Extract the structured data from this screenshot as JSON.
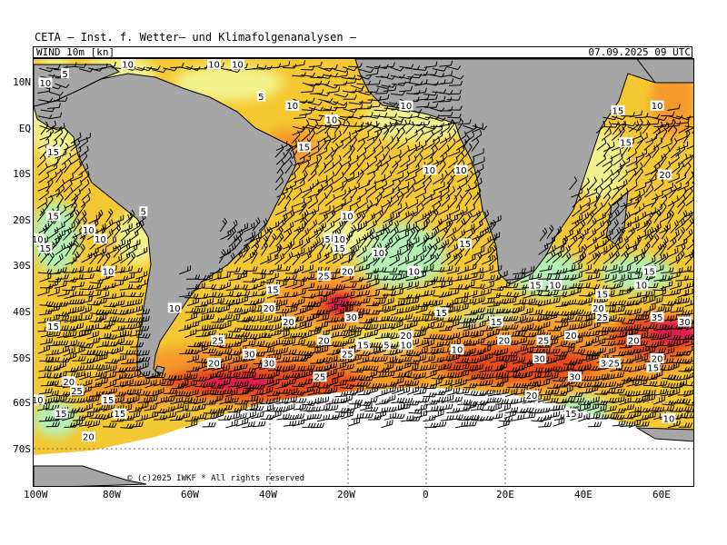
{
  "header": {
    "title": "CETA – Inst. f. Wetter– und Klimafolgenanalysen –",
    "variable": "WIND  10m  [kn]",
    "datetime": "07.09.2025  09  UTC"
  },
  "axes": {
    "lat_labels": [
      "10N",
      "EQ",
      "10S",
      "20S",
      "30S",
      "40S",
      "50S",
      "60S",
      "70S"
    ],
    "lon_labels": [
      "100W",
      "80W",
      "60W",
      "40W",
      "20W",
      "0",
      "20E",
      "40E",
      "60E"
    ]
  },
  "footer": {
    "copyright": "© (c)2025 IWKF  *  All rights reserved"
  },
  "map": {
    "projection": "lat-lon",
    "region": "South Atlantic",
    "colors": {
      "land": "#a6a6a6",
      "ice": "#ffffff",
      "wind_calm": "#b4f0b4",
      "wind_light": "#f2f28c",
      "wind_moderate": "#f6c42a",
      "wind_fresh": "#f59a2a",
      "wind_strong": "#e84a1e",
      "wind_gale": "#e01a50"
    },
    "speed_labels": [
      {
        "lon": -92,
        "lat": 12,
        "text": "5"
      },
      {
        "lon": -76,
        "lat": 14,
        "text": "10"
      },
      {
        "lon": -54,
        "lat": 14,
        "text": "10"
      },
      {
        "lon": -48,
        "lat": 14,
        "text": "10"
      },
      {
        "lon": -42,
        "lat": 7,
        "text": "5"
      },
      {
        "lon": -34,
        "lat": 5,
        "text": "10"
      },
      {
        "lon": -24,
        "lat": 2,
        "text": "10"
      },
      {
        "lon": -5,
        "lat": 5,
        "text": "10"
      },
      {
        "lon": 49,
        "lat": 4,
        "text": "15"
      },
      {
        "lon": 59,
        "lat": 5,
        "text": "10"
      },
      {
        "lon": -97,
        "lat": 10,
        "text": "10"
      },
      {
        "lon": -95,
        "lat": -5,
        "text": "15"
      },
      {
        "lon": -31,
        "lat": -4,
        "text": "15"
      },
      {
        "lon": 1,
        "lat": -9,
        "text": "10"
      },
      {
        "lon": 9,
        "lat": -9,
        "text": "10"
      },
      {
        "lon": 51,
        "lat": -3,
        "text": "15"
      },
      {
        "lon": 61,
        "lat": -10,
        "text": "20"
      },
      {
        "lon": -95,
        "lat": -19,
        "text": "15"
      },
      {
        "lon": -86,
        "lat": -22,
        "text": "10"
      },
      {
        "lon": -83,
        "lat": -24,
        "text": "10"
      },
      {
        "lon": -99,
        "lat": -24,
        "text": "10"
      },
      {
        "lon": -97,
        "lat": -26,
        "text": "15"
      },
      {
        "lon": -72,
        "lat": -18,
        "text": "5"
      },
      {
        "lon": -20,
        "lat": -19,
        "text": "10"
      },
      {
        "lon": -25,
        "lat": -24,
        "text": "5"
      },
      {
        "lon": -22,
        "lat": -24,
        "text": "10"
      },
      {
        "lon": -22,
        "lat": -26,
        "text": "15"
      },
      {
        "lon": -12,
        "lat": -27,
        "text": "10"
      },
      {
        "lon": 10,
        "lat": -25,
        "text": "15"
      },
      {
        "lon": -81,
        "lat": -31,
        "text": "10"
      },
      {
        "lon": -26,
        "lat": -32,
        "text": "25"
      },
      {
        "lon": -20,
        "lat": -31,
        "text": "20"
      },
      {
        "lon": -3,
        "lat": -31,
        "text": "10"
      },
      {
        "lon": 57,
        "lat": -31,
        "text": "15"
      },
      {
        "lon": 28,
        "lat": -34,
        "text": "15"
      },
      {
        "lon": 33,
        "lat": -34,
        "text": "10"
      },
      {
        "lon": 55,
        "lat": -34,
        "text": "10"
      },
      {
        "lon": 45,
        "lat": -36,
        "text": "15"
      },
      {
        "lon": -39,
        "lat": -35,
        "text": "15"
      },
      {
        "lon": -64,
        "lat": -39,
        "text": "10"
      },
      {
        "lon": -40,
        "lat": -39,
        "text": "20"
      },
      {
        "lon": 44,
        "lat": -39,
        "text": "20"
      },
      {
        "lon": 45,
        "lat": -41,
        "text": "25"
      },
      {
        "lon": 4,
        "lat": -40,
        "text": "15"
      },
      {
        "lon": -19,
        "lat": -41,
        "text": "30"
      },
      {
        "lon": -35,
        "lat": -42,
        "text": "20"
      },
      {
        "lon": 59,
        "lat": -41,
        "text": "35"
      },
      {
        "lon": 66,
        "lat": -42,
        "text": "30"
      },
      {
        "lon": -95,
        "lat": -43,
        "text": "15"
      },
      {
        "lon": 18,
        "lat": -42,
        "text": "15"
      },
      {
        "lon": -5,
        "lat": -45,
        "text": "20"
      },
      {
        "lon": -53,
        "lat": -46,
        "text": "25"
      },
      {
        "lon": -26,
        "lat": -46,
        "text": "20"
      },
      {
        "lon": 20,
        "lat": -46,
        "text": "20"
      },
      {
        "lon": 30,
        "lat": -46,
        "text": "25"
      },
      {
        "lon": 37,
        "lat": -45,
        "text": "20"
      },
      {
        "lon": 53,
        "lat": -46,
        "text": "20"
      },
      {
        "lon": -16,
        "lat": -47,
        "text": "15"
      },
      {
        "lon": -10,
        "lat": -47,
        "text": "5"
      },
      {
        "lon": -5,
        "lat": -47,
        "text": "10"
      },
      {
        "lon": 8,
        "lat": -48,
        "text": "10"
      },
      {
        "lon": -45,
        "lat": -49,
        "text": "30"
      },
      {
        "lon": -20,
        "lat": -49,
        "text": "25"
      },
      {
        "lon": 29,
        "lat": -50,
        "text": "30"
      },
      {
        "lon": 46,
        "lat": -51,
        "text": "30"
      },
      {
        "lon": 48,
        "lat": -51,
        "text": "25"
      },
      {
        "lon": 59,
        "lat": -50,
        "text": "20"
      },
      {
        "lon": -54,
        "lat": -51,
        "text": "20"
      },
      {
        "lon": -40,
        "lat": -51,
        "text": "30"
      },
      {
        "lon": 58,
        "lat": -52,
        "text": "15"
      },
      {
        "lon": 38,
        "lat": -54,
        "text": "30"
      },
      {
        "lon": -27,
        "lat": -54,
        "text": "25"
      },
      {
        "lon": -91,
        "lat": -55,
        "text": "20"
      },
      {
        "lon": -89,
        "lat": -57,
        "text": "25"
      },
      {
        "lon": -99,
        "lat": -59,
        "text": "10"
      },
      {
        "lon": -81,
        "lat": -59,
        "text": "15"
      },
      {
        "lon": 27,
        "lat": -58,
        "text": "20"
      },
      {
        "lon": -93,
        "lat": -62,
        "text": "15"
      },
      {
        "lon": -78,
        "lat": -62,
        "text": "15"
      },
      {
        "lon": 37,
        "lat": -62,
        "text": "15"
      },
      {
        "lon": 62,
        "lat": -63,
        "text": "10"
      },
      {
        "lon": -86,
        "lat": -67,
        "text": "20"
      }
    ]
  }
}
